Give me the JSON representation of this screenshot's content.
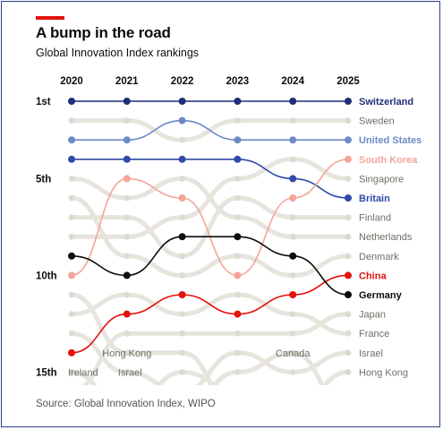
{
  "header": {
    "title": "A bump in the road",
    "subtitle": "Global Innovation Index rankings"
  },
  "footer": {
    "source": "Source: Global Innovation Index, WIPO"
  },
  "colors": {
    "accent": "#e3120b",
    "background_lines": "#e6e4dc",
    "background_dots": "#dcdad2",
    "background_labels": "#6e6e66",
    "Switzerland": "#1f2e7a",
    "United States": "#6b8bc4",
    "Britain": "#2f4aa8",
    "South Korea": "#f3a59a",
    "China": "#e3120b",
    "Germany": "#0d0d0d"
  },
  "chart_data": {
    "type": "bump",
    "title": "Global Innovation Index rankings",
    "x": [
      "2020",
      "2021",
      "2022",
      "2023",
      "2024",
      "2025"
    ],
    "y_axis": {
      "inverted": true,
      "range": [
        1,
        15
      ],
      "tick_labels": [
        {
          "rank": 1,
          "label": "1st"
        },
        {
          "rank": 5,
          "label": "5th"
        },
        {
          "rank": 10,
          "label": "10th"
        },
        {
          "rank": 15,
          "label": "15th"
        }
      ]
    },
    "highlighted_series": [
      {
        "name": "Switzerland",
        "ranks": [
          1,
          1,
          1,
          1,
          1,
          1
        ]
      },
      {
        "name": "United States",
        "ranks": [
          3,
          3,
          2,
          3,
          3,
          3
        ]
      },
      {
        "name": "Britain",
        "ranks": [
          4,
          4,
          4,
          4,
          5,
          6
        ]
      },
      {
        "name": "South Korea",
        "ranks": [
          10,
          5,
          6,
          10,
          6,
          4
        ]
      },
      {
        "name": "China",
        "ranks": [
          14,
          12,
          11,
          12,
          11,
          10
        ]
      },
      {
        "name": "Germany",
        "ranks": [
          9,
          10,
          8,
          8,
          9,
          11
        ]
      }
    ],
    "background_series": [
      {
        "name": "Sweden",
        "ranks": [
          2,
          2,
          3,
          2,
          2,
          2
        ]
      },
      {
        "name": "Singapore",
        "ranks": [
          8,
          8,
          7,
          5,
          4,
          5
        ]
      },
      {
        "name": "Finland",
        "ranks": [
          7,
          7,
          9,
          6,
          7,
          7
        ]
      },
      {
        "name": "Netherlands",
        "ranks": [
          5,
          6,
          5,
          7,
          8,
          8
        ]
      },
      {
        "name": "Denmark",
        "ranks": [
          6,
          9,
          10,
          9,
          10,
          9
        ]
      },
      {
        "name": "Japan",
        "ranks": [
          16,
          13,
          13,
          13,
          13,
          12
        ]
      },
      {
        "name": "France",
        "ranks": [
          12,
          11,
          12,
          11,
          12,
          13
        ]
      },
      {
        "name": "Israel",
        "ranks": [
          13,
          15,
          16,
          14,
          15,
          14
        ]
      },
      {
        "name": "Hong Kong",
        "ranks": [
          11,
          14,
          14,
          17,
          17,
          15
        ]
      },
      {
        "name": "Ireland",
        "ranks": [
          15,
          17,
          15,
          16,
          16,
          16
        ]
      },
      {
        "name": "Canada",
        "ranks": [
          17,
          16,
          17,
          15,
          14,
          17
        ]
      }
    ],
    "inline_labels": [
      {
        "text": "Hong Kong",
        "year": "2021",
        "rank": 14
      },
      {
        "text": "Canada",
        "year": "2024",
        "rank": 14
      },
      {
        "text": "Ireland",
        "year": "2020",
        "rank": 15
      },
      {
        "text": "Israel",
        "year": "2021",
        "rank": 15
      }
    ],
    "right_labels": [
      {
        "text": "Switzerland",
        "rank": 1,
        "highlight": true
      },
      {
        "text": "Sweden",
        "rank": 2,
        "highlight": false
      },
      {
        "text": "United States",
        "rank": 3,
        "highlight": true
      },
      {
        "text": "South Korea",
        "rank": 4,
        "highlight": true
      },
      {
        "text": "Singapore",
        "rank": 5,
        "highlight": false
      },
      {
        "text": "Britain",
        "rank": 6,
        "highlight": true
      },
      {
        "text": "Finland",
        "rank": 7,
        "highlight": false
      },
      {
        "text": "Netherlands",
        "rank": 8,
        "highlight": false
      },
      {
        "text": "Denmark",
        "rank": 9,
        "highlight": false
      },
      {
        "text": "China",
        "rank": 10,
        "highlight": true
      },
      {
        "text": "Germany",
        "rank": 11,
        "highlight": true
      },
      {
        "text": "Japan",
        "rank": 12,
        "highlight": false
      },
      {
        "text": "France",
        "rank": 13,
        "highlight": false
      },
      {
        "text": "Israel",
        "rank": 14,
        "highlight": false
      },
      {
        "text": "Hong Kong",
        "rank": 15,
        "highlight": false
      }
    ],
    "grid": false,
    "legend": "none"
  }
}
